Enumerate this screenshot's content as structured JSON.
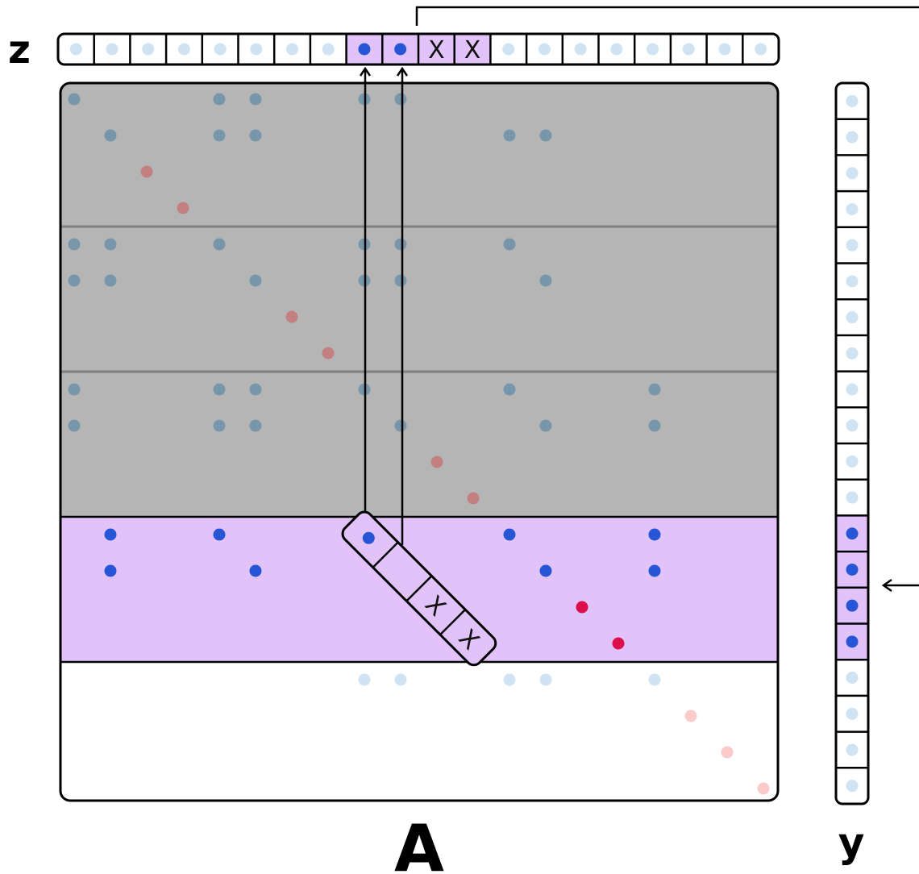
{
  "labels": {
    "vector_z": "z",
    "matrix_a": "A",
    "vector_y": "y",
    "mark": "X"
  },
  "colors": {
    "highlight": "#e1c3fa",
    "shade": "#b5b5b5",
    "shade_line": "#808080",
    "dot_active": "#2655d6",
    "dot_active_diag": "#dc0f4c",
    "dot_shaded": "#7896aa",
    "dot_shaded_diag": "#c28080",
    "dot_light": "#cfe3f2",
    "dot_light_diag": "#fbcbcb",
    "border": "#000000"
  },
  "matrix": {
    "size": 20,
    "shaded_rows": [
      0,
      1,
      2,
      3,
      4,
      5,
      6,
      7,
      8,
      9,
      10,
      11
    ],
    "shaded_separators_after_rows": [
      3,
      7
    ],
    "active_rows": [
      12,
      13,
      14,
      15
    ],
    "light_rows": [
      16,
      17,
      18,
      19
    ],
    "rows": [
      {
        "cols": [
          0,
          4,
          5,
          8,
          9
        ],
        "diag": []
      },
      {
        "cols": [
          1,
          4,
          5,
          12,
          13
        ],
        "diag": []
      },
      {
        "cols": [],
        "diag": [
          2
        ]
      },
      {
        "cols": [],
        "diag": [
          3
        ]
      },
      {
        "cols": [
          0,
          1,
          4,
          8,
          9,
          12
        ],
        "diag": []
      },
      {
        "cols": [
          0,
          1,
          5,
          8,
          9,
          13
        ],
        "diag": []
      },
      {
        "cols": [],
        "diag": [
          6
        ]
      },
      {
        "cols": [],
        "diag": [
          7
        ]
      },
      {
        "cols": [
          0,
          4,
          5,
          8,
          12,
          16
        ],
        "diag": []
      },
      {
        "cols": [
          0,
          4,
          5,
          9,
          13,
          16
        ],
        "diag": []
      },
      {
        "cols": [],
        "diag": [
          10
        ]
      },
      {
        "cols": [],
        "diag": [
          11
        ]
      },
      {
        "cols": [
          1,
          4,
          8,
          12,
          16
        ],
        "diag": []
      },
      {
        "cols": [
          1,
          5,
          9,
          13,
          16
        ],
        "diag": []
      },
      {
        "cols": [],
        "diag": [
          14
        ]
      },
      {
        "cols": [],
        "diag": [
          15
        ]
      },
      {
        "cols": [
          8,
          9,
          12,
          13,
          16
        ],
        "diag": []
      },
      {
        "cols": [],
        "diag": [
          17
        ]
      },
      {
        "cols": [],
        "diag": [
          18
        ]
      },
      {
        "cols": [],
        "diag": [
          19
        ]
      }
    ]
  },
  "vector_z": {
    "size": 20,
    "cells": [
      "light",
      "light",
      "light",
      "light",
      "light",
      "light",
      "light",
      "light",
      "active",
      "active",
      "mark",
      "mark",
      "light",
      "light",
      "light",
      "light",
      "light",
      "light",
      "light",
      "light"
    ],
    "highlighted": [
      8,
      9,
      10,
      11
    ]
  },
  "vector_y": {
    "size": 20,
    "highlighted": [
      12,
      13,
      14,
      15
    ]
  },
  "gather_window": {
    "cells": [
      "active",
      "empty",
      "mark",
      "mark"
    ],
    "arrows_to_z": [
      8,
      9
    ]
  }
}
